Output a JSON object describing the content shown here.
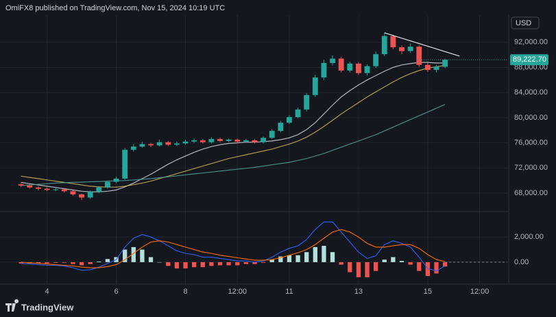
{
  "chart_data": {
    "type": "candlestick",
    "title": "OmiFX8 published on TradingView.com, Nov 15, 2024 10:19 UTC",
    "currency": "USD",
    "brand": "TradingView",
    "x": [
      3.25,
      3.5,
      3.75,
      4,
      4.25,
      4.5,
      4.75,
      5,
      5.25,
      5.5,
      5.75,
      6,
      6.25,
      6.5,
      6.75,
      7,
      7.25,
      7.5,
      7.75,
      8,
      8.25,
      8.5,
      8.75,
      9,
      9.25,
      9.5,
      9.75,
      10,
      10.25,
      10.5,
      10.75,
      11,
      11.25,
      11.5,
      11.75,
      12,
      12.25,
      12.5,
      12.75,
      13,
      13.25,
      13.5,
      13.75,
      14,
      14.25,
      14.5,
      14.75,
      15,
      15.25,
      15.5
    ],
    "open": [
      69400,
      69200,
      68900,
      68700,
      68500,
      68600,
      68300,
      67800,
      67300,
      68200,
      68900,
      69800,
      70300,
      74900,
      75400,
      75800,
      75600,
      76100,
      75700,
      75900,
      76200,
      76400,
      76100,
      76600,
      76300,
      76500,
      76200,
      76400,
      76100,
      76800,
      77900,
      79200,
      80100,
      81300,
      83600,
      86400,
      88700,
      89400,
      87500,
      88600,
      87100,
      88200,
      90100,
      93000,
      91200,
      90600,
      91300,
      88400,
      87600,
      88100
    ],
    "high": [
      69600,
      69400,
      69100,
      68900,
      68900,
      68800,
      68400,
      67900,
      68400,
      69100,
      70000,
      70600,
      75200,
      75800,
      76200,
      76000,
      76500,
      76300,
      76200,
      76500,
      76700,
      76600,
      76900,
      76800,
      76700,
      76700,
      76600,
      76600,
      77000,
      78200,
      79500,
      80400,
      81600,
      83900,
      86800,
      89200,
      89900,
      89700,
      88900,
      88900,
      88500,
      90500,
      93500,
      93200,
      91500,
      91800,
      91500,
      88700,
      88400,
      89400
    ],
    "low": [
      69000,
      68700,
      68400,
      68300,
      68300,
      68100,
      67600,
      66900,
      67100,
      68000,
      68700,
      69600,
      70100,
      74600,
      75200,
      75300,
      75400,
      75500,
      75500,
      75700,
      76000,
      75900,
      75900,
      76100,
      76100,
      75900,
      76000,
      75900,
      75900,
      76600,
      77700,
      79000,
      79900,
      81000,
      83300,
      86000,
      88300,
      87200,
      87200,
      86800,
      86700,
      87900,
      89800,
      90900,
      90100,
      90300,
      88100,
      87300,
      87200,
      87900
    ],
    "close": [
      69200,
      68900,
      68700,
      68500,
      68600,
      68300,
      67800,
      67300,
      68200,
      68900,
      69800,
      70300,
      74900,
      75400,
      75800,
      75600,
      76100,
      75700,
      75900,
      76200,
      76400,
      76100,
      76600,
      76300,
      76500,
      76200,
      76400,
      76100,
      76800,
      77900,
      79200,
      80100,
      81300,
      83600,
      86400,
      88700,
      89400,
      87500,
      88600,
      87100,
      88200,
      90100,
      93000,
      91200,
      90600,
      91300,
      88400,
      87600,
      88100,
      89222.7
    ],
    "up_color": "#26a69a",
    "down_color": "#ef5350",
    "overlays": [
      {
        "color": "#d1d4dc",
        "values": [
          69700,
          69500,
          69300,
          69100,
          68900,
          68700,
          68500,
          68300,
          68200,
          68200,
          68300,
          68500,
          69000,
          69600,
          70300,
          71000,
          71800,
          72600,
          73300,
          73900,
          74500,
          75000,
          75400,
          75700,
          75900,
          76000,
          76100,
          76100,
          76200,
          76300,
          76500,
          76800,
          77300,
          78100,
          79200,
          80600,
          82000,
          83300,
          84300,
          85200,
          86000,
          86700,
          87400,
          88000,
          88400,
          88600,
          88800,
          88800,
          88700,
          88700
        ]
      },
      {
        "color": "#c9b458",
        "values": [
          70700,
          70500,
          70300,
          70100,
          69900,
          69700,
          69500,
          69300,
          69100,
          69000,
          68950,
          68950,
          69100,
          69350,
          69600,
          69900,
          70300,
          70700,
          71100,
          71500,
          71900,
          72300,
          72700,
          73100,
          73500,
          73800,
          74100,
          74400,
          74700,
          75000,
          75400,
          75800,
          76300,
          76900,
          77700,
          78600,
          79600,
          80600,
          81500,
          82400,
          83300,
          84100,
          84900,
          85700,
          86400,
          87000,
          87500,
          87900,
          88100,
          88300
        ]
      },
      {
        "color": "#4f9e9a",
        "values": [
          69200,
          69300,
          69400,
          69500,
          69600,
          69650,
          69700,
          69750,
          69800,
          69850,
          69900,
          69950,
          70000,
          70100,
          70200,
          70300,
          70450,
          70600,
          70750,
          70900,
          71050,
          71200,
          71350,
          71500,
          71650,
          71800,
          71950,
          72100,
          72300,
          72500,
          72700,
          72900,
          73200,
          73500,
          73900,
          74300,
          74800,
          75300,
          75800,
          76300,
          76800,
          77300,
          77900,
          78500,
          79100,
          79700,
          80300,
          80900,
          81500,
          82100
        ]
      }
    ],
    "trendline": {
      "x": [
        13.75,
        15.92
      ],
      "y": [
        93500,
        89800
      ],
      "color": "#e0e3eb"
    },
    "last_price": {
      "value": 89222.7,
      "label": "89,222.70"
    },
    "xlim": [
      2.8,
      17.3
    ],
    "xticks": [
      4,
      6,
      8,
      {
        "value": 9.5,
        "label": "12:00"
      },
      11,
      13,
      15,
      {
        "value": 16.5,
        "label": "12:00"
      }
    ],
    "ylim": [
      65500,
      96000
    ],
    "yticks": [
      {
        "value": 68000,
        "label": "68,000.00"
      },
      {
        "value": 72000,
        "label": "72,000.00"
      },
      {
        "value": 76000,
        "label": "76,000.00"
      },
      {
        "value": 80000,
        "label": "80,000.00"
      },
      {
        "value": 84000,
        "label": "84,000.00"
      },
      {
        "value": 88000,
        "label": "88,000.00"
      },
      {
        "value": 92000,
        "label": "92,000.00"
      }
    ],
    "grid": true,
    "macd": {
      "ylim": [
        -1750,
        3700
      ],
      "yticks": [
        {
          "value": 0,
          "label": "0.00"
        },
        {
          "value": 2000,
          "label": "2,000.00"
        }
      ],
      "macd_line": {
        "color": "#2962ff",
        "values": [
          -100,
          -150,
          -200,
          -250,
          -250,
          -300,
          -450,
          -650,
          -600,
          -400,
          -100,
          200,
          1200,
          1900,
          2200,
          2000,
          1700,
          1300,
          900,
          700,
          600,
          400,
          400,
          300,
          200,
          100,
          100,
          0,
          100,
          400,
          800,
          1100,
          1300,
          1800,
          2600,
          3200,
          3200,
          2400,
          1600,
          800,
          300,
          500,
          1400,
          1700,
          1500,
          1200,
          400,
          -500,
          -700,
          -300
        ]
      },
      "signal_line": {
        "color": "#ff6d00",
        "values": [
          0,
          -50,
          -100,
          -150,
          -200,
          -250,
          -300,
          -400,
          -450,
          -450,
          -350,
          -200,
          200,
          700,
          1200,
          1600,
          1700,
          1600,
          1400,
          1200,
          1000,
          800,
          700,
          550,
          450,
          350,
          250,
          150,
          150,
          200,
          350,
          550,
          750,
          1000,
          1400,
          1900,
          2400,
          2600,
          2400,
          2000,
          1500,
          1200,
          1200,
          1300,
          1400,
          1400,
          1100,
          600,
          200,
          50
        ]
      },
      "histogram": {
        "positive_color": "#b2dfdb",
        "negative_color": "#ef5350",
        "values": [
          -100,
          -100,
          -100,
          -100,
          -50,
          -50,
          -150,
          -250,
          -150,
          50,
          250,
          400,
          1000,
          1200,
          1000,
          400,
          0,
          -300,
          -500,
          -500,
          -400,
          -400,
          -300,
          -250,
          -250,
          -250,
          -150,
          -150,
          -50,
          200,
          450,
          550,
          550,
          800,
          1200,
          1300,
          800,
          -200,
          -800,
          -1200,
          -1200,
          -700,
          200,
          400,
          100,
          -200,
          -700,
          -1100,
          -900,
          -350
        ]
      }
    }
  }
}
